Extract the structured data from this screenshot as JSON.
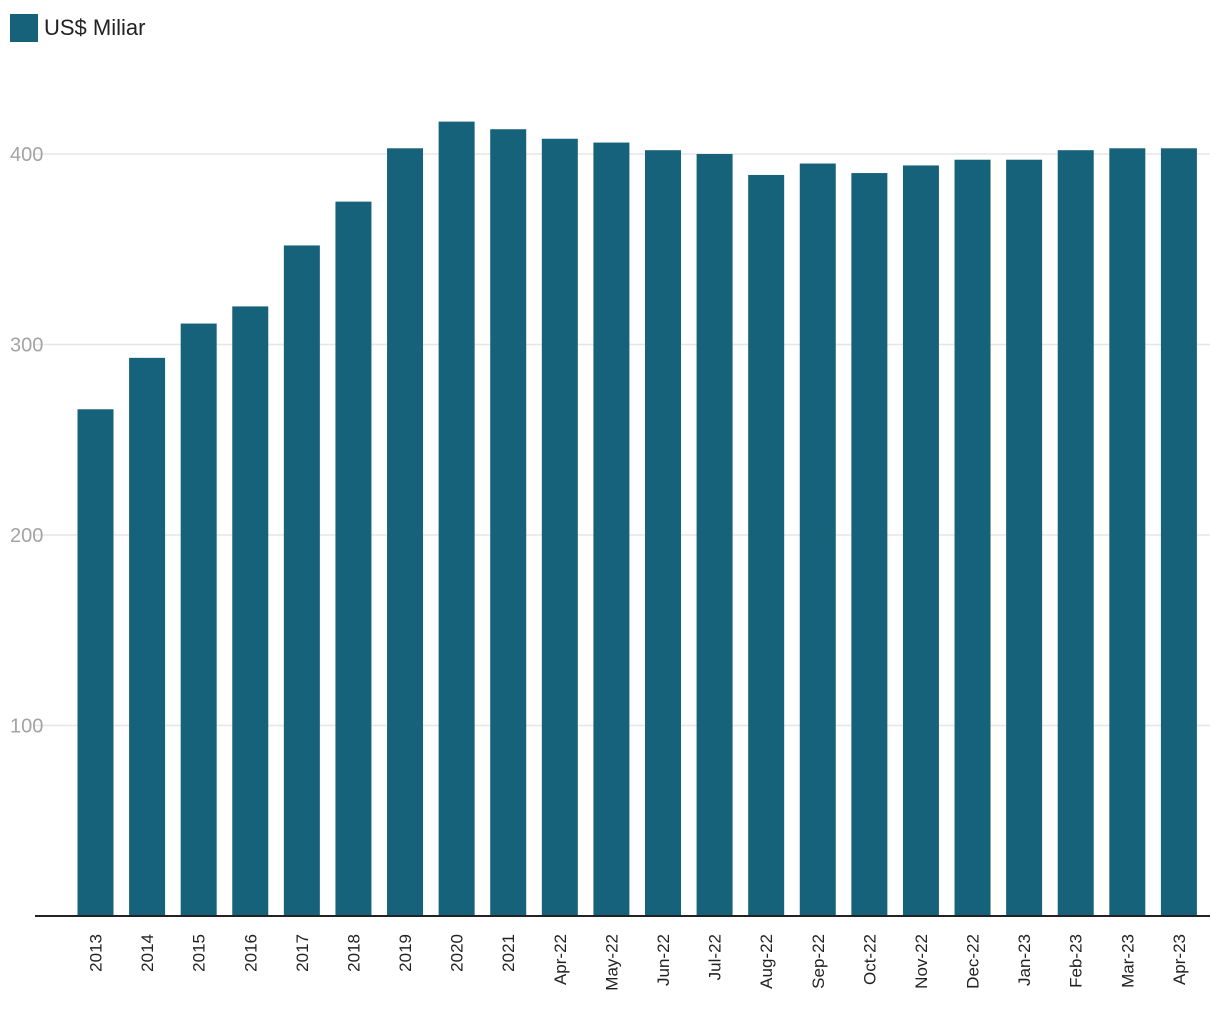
{
  "chart_data": {
    "type": "bar",
    "title": "",
    "xlabel": "",
    "ylabel": "",
    "legend": {
      "position": "top-left",
      "entries": [
        "US$ Miliar"
      ]
    },
    "grid": true,
    "ylim": [
      0,
      440
    ],
    "yticks": [
      100,
      200,
      300,
      400
    ],
    "categories": [
      "2013",
      "2014",
      "2015",
      "2016",
      "2017",
      "2018",
      "2019",
      "2020",
      "2021",
      "Apr-22",
      "May-22",
      "Jun-22",
      "Jul-22",
      "Aug-22",
      "Sep-22",
      "Oct-22",
      "Nov-22",
      "Dec-22",
      "Jan-23",
      "Feb-23",
      "Mar-23",
      "Apr-23"
    ],
    "series": [
      {
        "name": "US$ Miliar",
        "color": "#17627b",
        "values": [
          266,
          293,
          311,
          320,
          352,
          375,
          403,
          417,
          413,
          408,
          406,
          402,
          400,
          389,
          395,
          390,
          394,
          397,
          397,
          402,
          403,
          403
        ]
      }
    ]
  }
}
